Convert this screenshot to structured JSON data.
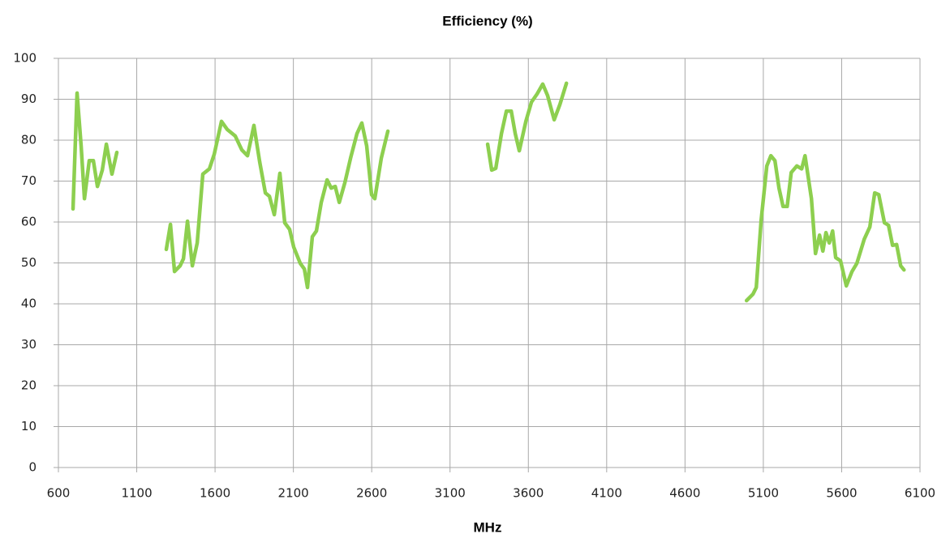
{
  "chart_data": {
    "type": "line",
    "title": "Efficiency (%)",
    "x_label": "MHz",
    "xlim": [
      600,
      6100
    ],
    "xticks": [
      600,
      1100,
      1600,
      2100,
      2600,
      3100,
      3600,
      4100,
      4600,
      5100,
      5600,
      6100
    ],
    "ylim": [
      0,
      100
    ],
    "yticks": [
      0,
      10,
      20,
      30,
      40,
      50,
      60,
      70,
      80,
      90,
      100
    ],
    "grid": true,
    "series": [
      {
        "color": "#8dcf4f",
        "x": [
          693,
          719,
          745,
          766,
          797,
          823,
          849,
          880,
          906,
          942,
          973,
          null,
          1289,
          1315,
          1341,
          1377,
          1398,
          1424,
          1455,
          1486,
          1522,
          1564,
          1595,
          1641,
          1678,
          1729,
          1771,
          1807,
          1848,
          1885,
          1921,
          1947,
          1978,
          2014,
          2045,
          2076,
          2102,
          2144,
          2170,
          2190,
          2221,
          2247,
          2278,
          2315,
          2341,
          2367,
          2393,
          2429,
          2465,
          2506,
          2537,
          2568,
          2599,
          2620,
          2661,
          2703,
          null,
          3340,
          3366,
          3392,
          3428,
          3460,
          3491,
          3516,
          3542,
          3584,
          3620,
          3656,
          3692,
          3723,
          3765,
          3801,
          3843,
          null,
          4993,
          5034,
          5055,
          5086,
          5122,
          5148,
          5174,
          5200,
          5226,
          5252,
          5278,
          5314,
          5345,
          5366,
          5407,
          5433,
          5459,
          5480,
          5500,
          5521,
          5542,
          5562,
          5593,
          5630,
          5666,
          5697,
          5744,
          5780,
          5811,
          5837,
          5873,
          5899,
          5925,
          5951,
          5977,
          5998
        ],
        "values": [
          63.2,
          91.5,
          78.6,
          65.7,
          75,
          75,
          68.7,
          72.7,
          79,
          71.7,
          77,
          null,
          53.3,
          59.4,
          47.9,
          49.3,
          51,
          60.2,
          49.3,
          54.9,
          71.7,
          73,
          76.6,
          84.6,
          82.6,
          81,
          77.6,
          76.2,
          83.6,
          74.7,
          67.1,
          66.3,
          61.8,
          71.9,
          59.8,
          58.2,
          53.9,
          49.9,
          48.5,
          44,
          56.4,
          57.8,
          64.8,
          70.3,
          68.3,
          68.7,
          64.8,
          69.7,
          75.6,
          81.6,
          84.2,
          78.6,
          66.7,
          65.7,
          75.6,
          82.2,
          null,
          79,
          72.7,
          73.1,
          81.6,
          87.1,
          87.1,
          81.6,
          77.4,
          84.6,
          89.3,
          91.3,
          93.7,
          90.9,
          85,
          88.7,
          93.9,
          null,
          40.8,
          42.4,
          44,
          60.4,
          73.7,
          76.2,
          75,
          68.3,
          63.8,
          63.8,
          72.1,
          73.7,
          73,
          76.2,
          65.7,
          52.3,
          56.8,
          52.9,
          57.4,
          54.9,
          57.8,
          51.3,
          50.5,
          44.4,
          47.9,
          49.9,
          55.8,
          58.8,
          67.1,
          66.7,
          59.8,
          59.2,
          54.3,
          54.5,
          49.3,
          48.3
        ]
      }
    ]
  }
}
